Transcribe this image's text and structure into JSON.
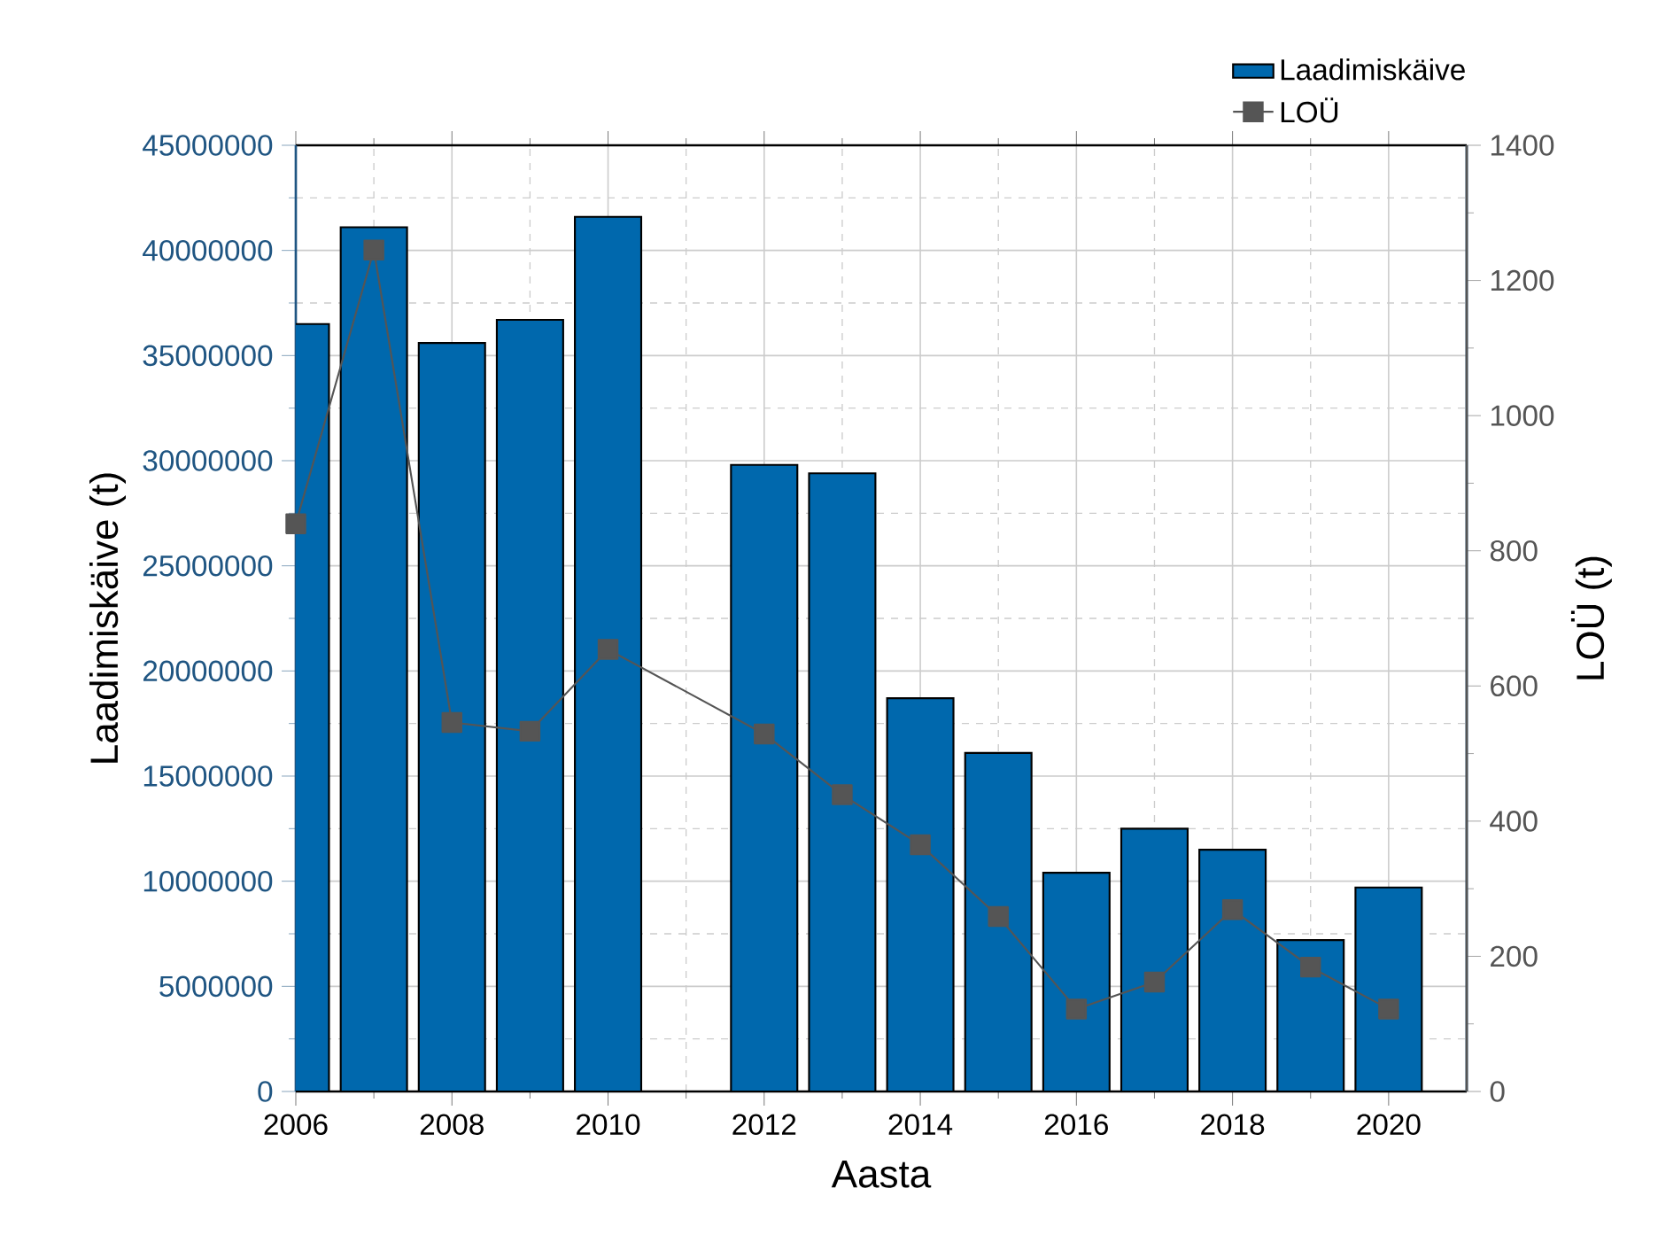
{
  "chart_data": {
    "type": "bar",
    "xlabel": "Aasta",
    "ylabel": "Laadimiskäive (t)",
    "y2label": "LOÜ (t)",
    "x": [
      2006,
      2007,
      2008,
      2009,
      2010,
      2011,
      2012,
      2013,
      2014,
      2015,
      2016,
      2017,
      2018,
      2019,
      2020
    ],
    "xlim": [
      2006,
      2021
    ],
    "xticks": [
      2006,
      2008,
      2010,
      2012,
      2014,
      2016,
      2018,
      2020
    ],
    "ylim": [
      0,
      45000000
    ],
    "yticks": [
      0,
      5000000,
      10000000,
      15000000,
      20000000,
      25000000,
      30000000,
      35000000,
      40000000,
      45000000
    ],
    "y2lim": [
      0,
      1400
    ],
    "y2ticks": [
      0,
      200,
      400,
      600,
      800,
      1000,
      1200,
      1400
    ],
    "grid": true,
    "legend": "top right",
    "series": [
      {
        "name": "Laadimiskäive",
        "color": "#0068ad",
        "values": [
          36500000,
          41100000,
          35600000,
          36700000,
          41600000,
          null,
          29800000,
          29400000,
          18700000,
          16100000,
          10400000,
          12500000,
          11500000,
          7200000,
          9700000
        ]
      },
      {
        "name": "LOÜ",
        "type": "line",
        "axis": "y2",
        "marker": "square",
        "color": "#555555",
        "values": [
          840,
          1245,
          546,
          533,
          654,
          null,
          529,
          439,
          365,
          259,
          122,
          162,
          269,
          184,
          122
        ]
      }
    ]
  }
}
